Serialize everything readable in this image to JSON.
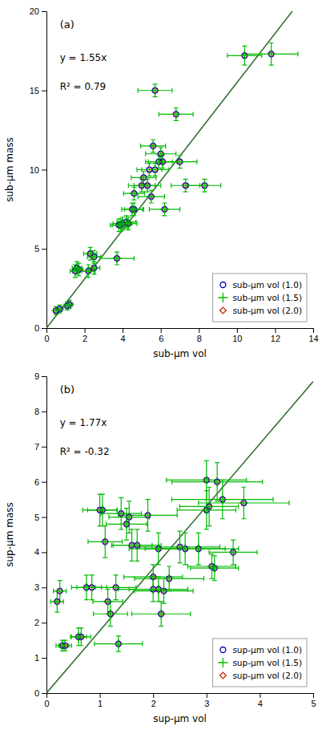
{
  "chart_data": [
    {
      "type": "scatter",
      "annotations": [
        "(a)",
        "y = 1.55x",
        "R² = 0.79"
      ],
      "x_label": "sub-µm vol",
      "y_label": "sub-µm mass",
      "xlim": [
        0,
        14
      ],
      "ylim": [
        0,
        20
      ],
      "xticks": [
        0,
        2,
        4,
        6,
        8,
        10,
        12,
        14
      ],
      "yticks": [
        0,
        5,
        10,
        15,
        20
      ],
      "grid": false,
      "legend": "lower right",
      "fit": {
        "slope": 1.55,
        "color": "#2a6b2a"
      },
      "x": [
        0.5,
        0.7,
        1.1,
        1.2,
        1.5,
        1.6,
        1.7,
        2.2,
        2.3,
        2.5,
        2.5,
        3.7,
        3.8,
        3.9,
        4.0,
        4.2,
        4.3,
        4.5,
        4.6,
        4.6,
        5.0,
        5.1,
        5.3,
        5.4,
        5.5,
        5.6,
        5.7,
        5.9,
        6.0,
        6.1,
        6.2,
        5.7,
        6.8,
        7.0,
        7.3,
        8.3,
        10.4,
        11.8
      ],
      "series": [
        {
          "name": "sub-µm vol (1.0)",
          "color": "#0000cc",
          "marker": "circle",
          "values": [
            1.1,
            1.2,
            1.4,
            1.5,
            3.6,
            3.8,
            3.7,
            3.6,
            4.7,
            4.5,
            3.8,
            4.4,
            6.5,
            6.5,
            6.6,
            6.7,
            6.6,
            7.5,
            7.5,
            8.5,
            9.0,
            9.5,
            9.0,
            10.0,
            8.3,
            11.5,
            10.0,
            10.5,
            11.0,
            10.5,
            7.5,
            15.0,
            13.5,
            10.5,
            9.0,
            9.0,
            17.2,
            17.3
          ]
        },
        {
          "name": "sub-µm vol (1.5)",
          "color": "#00bb00",
          "marker": "plus",
          "values": [
            1.1,
            1.2,
            1.4,
            1.5,
            3.6,
            3.8,
            3.7,
            3.6,
            4.7,
            4.5,
            3.8,
            4.4,
            6.5,
            6.5,
            6.6,
            6.7,
            6.6,
            7.5,
            7.5,
            8.5,
            9.0,
            9.5,
            9.0,
            10.0,
            8.3,
            11.5,
            10.0,
            10.5,
            11.0,
            10.5,
            7.5,
            15.0,
            13.5,
            10.5,
            9.0,
            9.0,
            17.2,
            17.3
          ],
          "xerr": [
            0.12,
            0.12,
            0.18,
            0.18,
            0.25,
            0.25,
            0.22,
            0.35,
            0.35,
            0.35,
            0.3,
            0.9,
            0.45,
            0.45,
            0.5,
            0.5,
            0.45,
            0.55,
            0.5,
            0.55,
            0.7,
            0.65,
            0.7,
            0.65,
            0.7,
            0.65,
            0.7,
            0.7,
            0.8,
            0.75,
            0.8,
            0.9,
            0.9,
            0.9,
            0.75,
            0.85,
            0.9,
            1.4
          ],
          "yerr": [
            0.25,
            0.25,
            0.25,
            0.25,
            0.4,
            0.4,
            0.4,
            0.4,
            0.4,
            0.4,
            0.4,
            0.4,
            0.4,
            0.4,
            0.4,
            0.4,
            0.4,
            0.4,
            0.4,
            0.4,
            0.4,
            0.4,
            0.4,
            0.4,
            0.4,
            0.4,
            0.4,
            0.4,
            0.4,
            0.4,
            0.4,
            0.4,
            0.4,
            0.4,
            0.4,
            0.4,
            0.6,
            0.7
          ]
        },
        {
          "name": "sub-µm vol (2.0)",
          "color": "#cc2200",
          "marker": "diamond",
          "values": [
            1.1,
            1.2,
            1.4,
            1.5,
            3.6,
            3.8,
            3.7,
            3.6,
            4.7,
            4.5,
            3.8,
            4.4,
            6.5,
            6.5,
            6.6,
            6.7,
            6.6,
            7.5,
            7.5,
            8.5,
            9.0,
            9.5,
            9.0,
            10.0,
            8.3,
            11.5,
            10.0,
            10.5,
            11.0,
            10.5,
            7.5,
            15.0,
            13.5,
            10.5,
            9.0,
            9.0,
            17.2,
            17.3
          ]
        }
      ]
    },
    {
      "type": "scatter",
      "annotations": [
        "(b)",
        "y = 1.77x",
        "R² = -0.32"
      ],
      "x_label": "sup-µm vol",
      "y_label": "sup-µm mass",
      "xlim": [
        0,
        5
      ],
      "ylim": [
        0,
        9
      ],
      "xticks": [
        0,
        1,
        2,
        3,
        4,
        5
      ],
      "yticks": [
        0,
        1,
        2,
        3,
        4,
        5,
        6,
        7,
        8,
        9
      ],
      "grid": false,
      "legend": "lower right",
      "fit": {
        "slope": 1.77,
        "color": "#2a6b2a"
      },
      "x": [
        0.2,
        0.25,
        0.3,
        0.35,
        0.6,
        0.65,
        0.75,
        0.85,
        1.0,
        1.05,
        1.1,
        1.15,
        1.2,
        1.3,
        1.35,
        1.4,
        1.5,
        1.55,
        1.6,
        1.7,
        1.9,
        2.0,
        2.0,
        2.1,
        2.1,
        2.15,
        2.2,
        2.3,
        2.5,
        2.6,
        2.85,
        3.0,
        3.0,
        3.05,
        3.1,
        3.15,
        3.2,
        3.3,
        3.5,
        3.7
      ],
      "series": [
        {
          "name": "sup-µm vol (1.0)",
          "color": "#0000cc",
          "marker": "circle",
          "values": [
            2.6,
            2.9,
            1.35,
            1.35,
            1.6,
            1.6,
            3.0,
            3.0,
            5.2,
            5.2,
            4.3,
            2.6,
            2.25,
            3.0,
            1.4,
            5.1,
            4.8,
            5.0,
            4.2,
            4.2,
            5.05,
            3.3,
            2.95,
            4.1,
            2.95,
            2.25,
            2.9,
            3.25,
            4.15,
            4.1,
            4.1,
            6.05,
            5.2,
            5.3,
            3.6,
            3.55,
            6.0,
            5.5,
            4.0,
            5.4
          ]
        },
        {
          "name": "sup-µm vol (1.5)",
          "color": "#00bb00",
          "marker": "plus",
          "values": [
            2.6,
            2.9,
            1.35,
            1.35,
            1.6,
            1.6,
            3.0,
            3.0,
            5.2,
            5.2,
            4.3,
            2.6,
            2.25,
            3.0,
            1.4,
            5.1,
            4.8,
            5.0,
            4.2,
            4.2,
            5.05,
            3.3,
            2.95,
            4.1,
            2.95,
            2.25,
            2.9,
            3.25,
            4.15,
            4.1,
            4.1,
            6.05,
            5.2,
            5.3,
            3.6,
            3.55,
            6.0,
            5.5,
            4.0,
            5.4
          ],
          "xerr": [
            0.12,
            0.12,
            0.12,
            0.12,
            0.15,
            0.18,
            0.28,
            0.28,
            0.32,
            0.28,
            0.32,
            0.28,
            0.32,
            0.38,
            0.45,
            0.38,
            0.38,
            0.38,
            0.38,
            0.45,
            0.55,
            0.55,
            0.65,
            0.55,
            0.55,
            0.55,
            0.55,
            0.65,
            0.75,
            0.75,
            0.75,
            0.75,
            0.55,
            0.55,
            0.45,
            0.45,
            0.85,
            0.95,
            0.45,
            0.85
          ],
          "yerr": [
            0.3,
            0.3,
            0.15,
            0.15,
            0.25,
            0.25,
            0.35,
            0.35,
            0.45,
            0.45,
            0.45,
            0.35,
            0.35,
            0.35,
            0.22,
            0.45,
            0.45,
            0.45,
            0.45,
            0.45,
            0.45,
            0.35,
            0.35,
            0.45,
            0.35,
            0.35,
            0.35,
            0.35,
            0.45,
            0.45,
            0.45,
            0.55,
            0.55,
            0.55,
            0.35,
            0.35,
            0.55,
            0.55,
            0.35,
            0.45
          ]
        },
        {
          "name": "sup-µm vol (2.0)",
          "color": "#cc2200",
          "marker": "diamond",
          "values": [
            2.6,
            2.9,
            1.35,
            1.35,
            1.6,
            1.6,
            3.0,
            3.0,
            5.2,
            5.2,
            4.3,
            2.6,
            2.25,
            3.0,
            1.4,
            5.1,
            4.8,
            5.0,
            4.2,
            4.2,
            5.05,
            3.3,
            2.95,
            4.1,
            2.95,
            2.25,
            2.9,
            3.25,
            4.15,
            4.1,
            4.1,
            6.05,
            5.2,
            5.3,
            3.6,
            3.55,
            6.0,
            5.5,
            4.0,
            5.4
          ]
        }
      ]
    }
  ]
}
